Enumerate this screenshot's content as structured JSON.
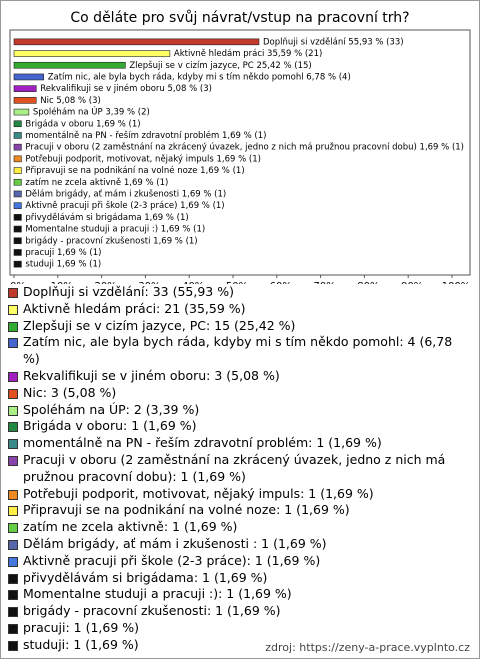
{
  "chart_data": {
    "type": "bar",
    "orientation": "horizontal",
    "title": "Co děláte pro svůj návrat/vstup na pracovní trh?",
    "categories": [
      "Doplňuji si vzdělání 55,93 % (33)",
      "Aktivně hledám práci 35,59 % (21)",
      "Zlepšuji se v cizím jazyce, PC 25,42 % (15)",
      "Zatím nic, ale byla bych ráda, kdyby mi s tím někdo pomohl 6,78 % (4)",
      "Rekvalifikuji se v jiném oboru 5,08 % (3)",
      "Nic 5,08 % (3)",
      "Spoléhám na ÚP 3,39 % (2)",
      "Brigáda v oboru 1,69 % (1)",
      "momentálně na PN - řeším zdravotní problém 1,69 % (1)",
      "Pracuji v oboru (2 zaměstnání na zkrácený úvazek, jedno z nich má pružnou pracovní dobu) 1,69 % (1)",
      "Potřebuji podporit, motivovat, nějaký impuls 1,69 % (1)",
      "Připravuji se na podnikání na volné noze 1,69 % (1)",
      "zatím ne zcela aktivně 1,69 % (1)",
      "Dělám brigády, ať mám i zkušenosti  1,69 % (1)",
      "Aktivně pracuji při škole (2-3 práce) 1,69 % (1)",
      "přivydělávám si brigádama 1,69 % (1)",
      "Momentalne studuji a pracuji :) 1,69 % (1)",
      "brigády - pracovní zkušenosti 1,69 % (1)",
      "pracuji 1,69 % (1)",
      "studuji 1,69 % (1)"
    ],
    "values": [
      55.93,
      35.59,
      25.42,
      6.78,
      5.08,
      5.08,
      3.39,
      1.69,
      1.69,
      1.69,
      1.69,
      1.69,
      1.69,
      1.69,
      1.69,
      1.69,
      1.69,
      1.69,
      1.69,
      1.69
    ],
    "colors": [
      "#c0392b",
      "#ffff66",
      "#33aa33",
      "#4466cc",
      "#a020c0",
      "#e05020",
      "#aaee88",
      "#228844",
      "#3a8a8a",
      "#8844aa",
      "#ee8822",
      "#ffee44",
      "#66cc44",
      "#5566aa",
      "#4477dd",
      "#111111",
      "#111111",
      "#111111",
      "#111111",
      "#111111"
    ],
    "legend_labels": [
      "Doplňuji si vzdělání: 33 (55,93 %)",
      "Aktivně hledám práci: 21 (35,59 %)",
      "Zlepšuji se v cizím jazyce, PC: 15 (25,42 %)",
      "Zatím nic, ale byla bych ráda, kdyby mi s tím někdo pomohl: 4 (6,78 %)",
      "Rekvalifikuji se v jiném oboru: 3 (5,08 %)",
      "Nic: 3 (5,08 %)",
      "Spoléhám na ÚP: 2 (3,39 %)",
      "Brigáda v oboru: 1 (1,69 %)",
      "momentálně na PN - řeším zdravotní problém: 1 (1,69 %)",
      "Pracuji v oboru (2 zaměstnání na zkrácený úvazek, jedno z nich má pružnou pracovní dobu): 1 (1,69 %)",
      "Potřebuji podporit, motivovat, nějaký impuls: 1 (1,69 %)",
      "Připravuji se na podnikání na volné noze: 1 (1,69 %)",
      "zatím ne zcela aktivně: 1 (1,69 %)",
      "Dělám brigády, ať mám i zkušenosti : 1 (1,69 %)",
      "Aktivně pracuji při škole (2-3 práce): 1 (1,69 %)",
      "přivydělávám si brigádama: 1 (1,69 %)",
      "Momentalne studuji a pracuji :): 1 (1,69 %)",
      "brigády - pracovní zkušenosti: 1 (1,69 %)",
      "pracuji: 1 (1,69 %)",
      "studuji: 1 (1,69 %)"
    ],
    "xlim": [
      0,
      100
    ],
    "xticks": [
      {
        "value": 0,
        "label": "0%"
      },
      {
        "value": 10,
        "label": "10%"
      },
      {
        "value": 20,
        "label": "20%"
      },
      {
        "value": 30,
        "label": "30%"
      },
      {
        "value": 40,
        "label": "40%"
      },
      {
        "value": 50,
        "label": "50%"
      },
      {
        "value": 60,
        "label": "60%"
      },
      {
        "value": 70,
        "label": "70%"
      },
      {
        "value": 80,
        "label": "80%"
      },
      {
        "value": 90,
        "label": "90%"
      },
      {
        "value": 100,
        "label": "100%"
      }
    ],
    "source": "zdroj: https://zeny-a-prace.vyplnto.cz"
  }
}
